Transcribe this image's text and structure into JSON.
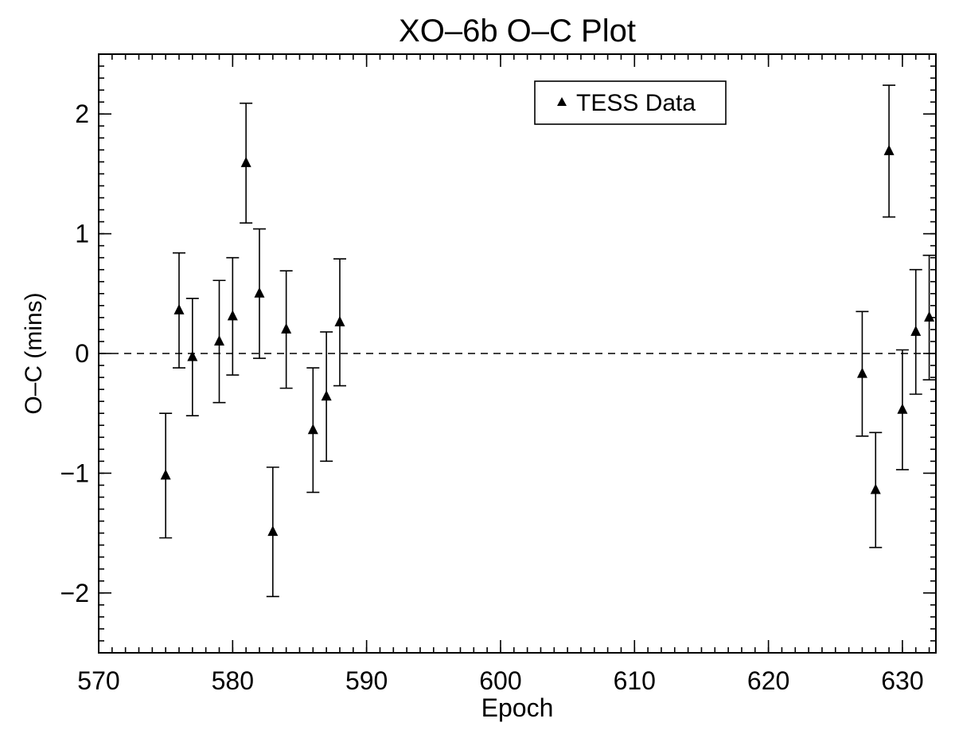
{
  "chart_data": {
    "type": "scatter",
    "title": "XO–6b O–C Plot",
    "xlabel": "Epoch",
    "ylabel": "O–C (mins)",
    "xlim": [
      570,
      632.5
    ],
    "ylim": [
      -2.5,
      2.5
    ],
    "xticks": [
      570,
      580,
      590,
      600,
      610,
      620,
      630
    ],
    "xtick_labels": [
      "570",
      "580",
      "590",
      "600",
      "610",
      "620",
      "630"
    ],
    "yticks": [
      -2,
      -1,
      0,
      1,
      2
    ],
    "ytick_labels": [
      "−2",
      "−1",
      "0",
      "1",
      "2"
    ],
    "x_minor_step": 1,
    "y_minor_step": 0.1,
    "grid": false,
    "reference_line": {
      "y": 0,
      "style": "dashed"
    },
    "legend": {
      "position": "top-right",
      "entries": [
        "TESS Data"
      ]
    },
    "series": [
      {
        "name": "TESS Data",
        "marker": "triangle",
        "color": "#000000",
        "points": [
          {
            "x": 575,
            "y": -1.02,
            "err": 0.52
          },
          {
            "x": 576,
            "y": 0.36,
            "err": 0.48
          },
          {
            "x": 577,
            "y": -0.03,
            "err": 0.49
          },
          {
            "x": 579,
            "y": 0.1,
            "err": 0.51
          },
          {
            "x": 580,
            "y": 0.31,
            "err": 0.49
          },
          {
            "x": 581,
            "y": 1.59,
            "err": 0.5
          },
          {
            "x": 582,
            "y": 0.5,
            "err": 0.54
          },
          {
            "x": 583,
            "y": -1.49,
            "err": 0.54
          },
          {
            "x": 584,
            "y": 0.2,
            "err": 0.49
          },
          {
            "x": 586,
            "y": -0.64,
            "err": 0.52
          },
          {
            "x": 587,
            "y": -0.36,
            "err": 0.54
          },
          {
            "x": 588,
            "y": 0.26,
            "err": 0.53
          },
          {
            "x": 627,
            "y": -0.17,
            "err": 0.52
          },
          {
            "x": 628,
            "y": -1.14,
            "err": 0.48
          },
          {
            "x": 629,
            "y": 1.69,
            "err": 0.55
          },
          {
            "x": 630,
            "y": -0.47,
            "err": 0.5
          },
          {
            "x": 631,
            "y": 0.18,
            "err": 0.52
          },
          {
            "x": 632,
            "y": 0.3,
            "err": 0.52
          }
        ]
      }
    ]
  }
}
